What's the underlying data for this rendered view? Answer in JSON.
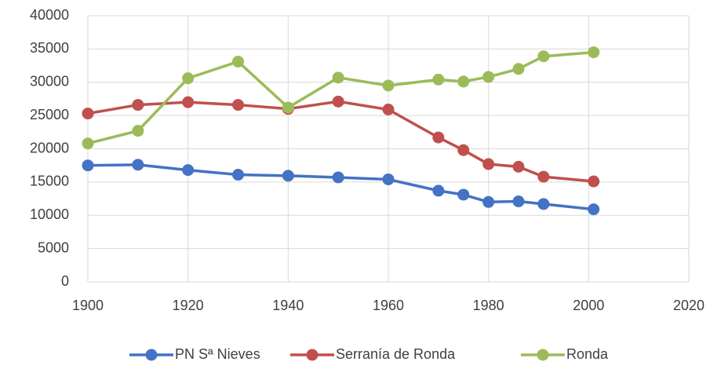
{
  "chart_data": {
    "type": "line",
    "x": [
      1900,
      1910,
      1920,
      1930,
      1940,
      1950,
      1960,
      1970,
      1975,
      1980,
      1986,
      1991,
      2001
    ],
    "series": [
      {
        "name": "PN Sª Nieves",
        "color": "#4472c4",
        "values": [
          17500,
          17600,
          16800,
          16100,
          15950,
          15700,
          15400,
          13700,
          13100,
          12000,
          12100,
          11700,
          10900
        ]
      },
      {
        "name": "Serranía de Ronda",
        "color": "#c0504d",
        "values": [
          25300,
          26600,
          27000,
          26600,
          26000,
          27100,
          25900,
          21700,
          19800,
          17700,
          17300,
          15800,
          15100
        ]
      },
      {
        "name": "Ronda",
        "color": "#9bbb59",
        "values": [
          20800,
          22700,
          30600,
          33100,
          26200,
          30700,
          29500,
          30400,
          30100,
          30800,
          32000,
          33900,
          34500
        ]
      }
    ],
    "xlim": [
      1900,
      2020
    ],
    "xticks": [
      1900,
      1920,
      1940,
      1960,
      1980,
      2000,
      2020
    ],
    "ylim": [
      0,
      40000
    ],
    "yticks": [
      0,
      5000,
      10000,
      15000,
      20000,
      25000,
      30000,
      35000,
      40000
    ],
    "grid": true,
    "legend": "bottom"
  }
}
